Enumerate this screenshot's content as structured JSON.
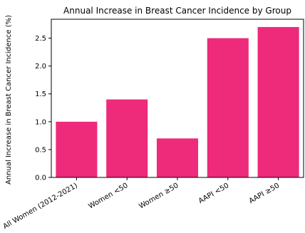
{
  "chart_data": {
    "type": "bar",
    "title": "Annual Increase in Breast Cancer Incidence by Group",
    "xlabel": "",
    "ylabel": "Annual Increase in Breast Cancer Incidence (%)",
    "categories": [
      "All Women (2012-2021)",
      "Women <50",
      "Women ≥50",
      "AAPI <50",
      "AAPI ≥50"
    ],
    "values": [
      1.0,
      1.4,
      0.7,
      2.5,
      2.7
    ],
    "ylim": [
      0,
      2.84
    ],
    "yticks": [
      0.0,
      0.5,
      1.0,
      1.5,
      2.0,
      2.5
    ],
    "ytick_labels": [
      "0.0",
      "0.5",
      "1.0",
      "1.5",
      "2.0",
      "2.5"
    ],
    "grid": false,
    "legend": "none",
    "colors": {
      "bar": "#ee2a7b",
      "axis": "#000000"
    }
  }
}
